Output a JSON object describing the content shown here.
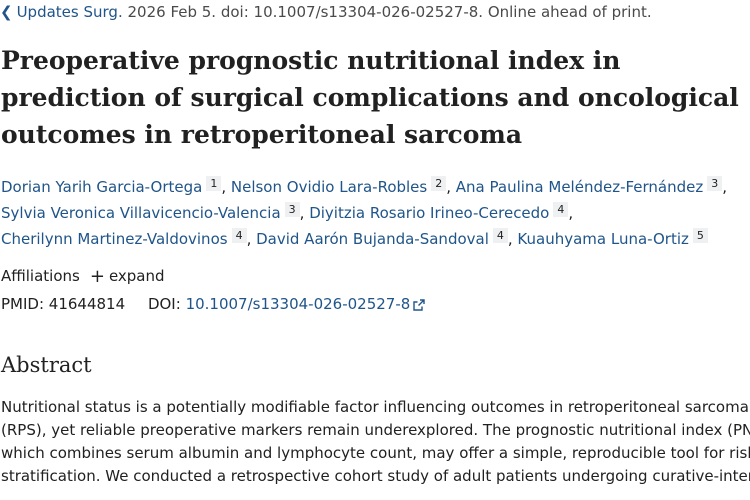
{
  "citation": {
    "journal": "Updates Surg.",
    "details": "2026 Feb 5. doi: 10.1007/s13304-026-02527-8. Online ahead of print."
  },
  "title": {
    "line1": "Preoperative prognostic nutritional index in",
    "line2": "prediction of surgical complications and oncological",
    "line3": "outcomes in retroperitoneal sarcoma"
  },
  "authors": [
    {
      "name": "Dorian Yarih Garcia-Ortega",
      "aff": "1"
    },
    {
      "name": "Nelson Ovidio Lara-Robles",
      "aff": "2"
    },
    {
      "name": "Ana Paulina Meléndez-Fernández",
      "aff": "3"
    },
    {
      "name": "Sylvia Veronica Villavicencio-Valencia",
      "aff": "3"
    },
    {
      "name": "Diyitzia Rosario Irineo-Cerecedo",
      "aff": "4"
    },
    {
      "name": "Cherilynn Martinez-Valdovinos",
      "aff": "4"
    },
    {
      "name": "David Aarón Bujanda-Sandoval",
      "aff": "4"
    },
    {
      "name": "Kuauhyama Luna-Ortiz",
      "aff": "5"
    }
  ],
  "affiliations": {
    "label": "Affiliations",
    "expand": "expand"
  },
  "ids": {
    "pmid_label": "PMID:",
    "pmid": "41644814",
    "doi_label": "DOI:",
    "doi": "10.1007/s13304-026-02527-8"
  },
  "abstract": {
    "heading": "Abstract",
    "lines": [
      "Nutritional status is a potentially modifiable factor influencing outcomes in retroperitoneal sarcoma",
      "(RPS), yet reliable preoperative markers remain underexplored. The prognostic nutritional index (PNI),",
      "which combines serum albumin and lymphocyte count, may offer a simple, reproducible tool for risk",
      "stratification. We conducted a retrospective cohort study of adult patients undergoing curative-intent"
    ]
  },
  "icons": {
    "back": "chevron-left-icon",
    "expand": "plus-icon",
    "external": "external-link-icon"
  },
  "colors": {
    "link": "#20558a",
    "text": "#212121",
    "badge_bg": "#eef0f2"
  }
}
